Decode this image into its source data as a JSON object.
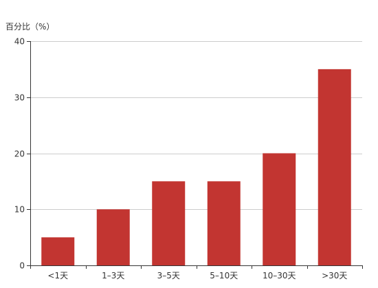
{
  "chart_data": {
    "type": "bar",
    "categories": [
      "<1天",
      "1–3天",
      "3–5天",
      "5–10天",
      "10–30天",
      ">30天"
    ],
    "values": [
      5,
      10,
      15,
      15,
      20,
      35
    ],
    "ylabel": "百分比（%）",
    "ylim": [
      0,
      40
    ],
    "yticks": [
      0,
      10,
      20,
      30,
      40
    ],
    "grid": true,
    "bar_color": "#c23531"
  }
}
